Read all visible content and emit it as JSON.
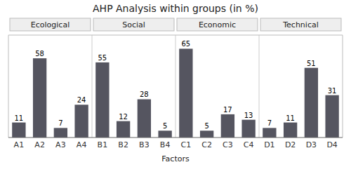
{
  "chart_data": {
    "type": "bar",
    "title": "AHP Analysis within groups (in %)",
    "xlabel": "Factors",
    "categories": [
      "A1",
      "A2",
      "A3",
      "A4",
      "B1",
      "B2",
      "B3",
      "B4",
      "C1",
      "C2",
      "C3",
      "C4",
      "D1",
      "D2",
      "D3",
      "D4"
    ],
    "values": [
      11,
      58,
      7,
      24,
      55,
      12,
      28,
      5,
      65,
      5,
      17,
      13,
      7,
      11,
      51,
      31
    ],
    "color": "#555560",
    "groups": [
      {
        "label": "Ecological",
        "start": 0,
        "end": 3
      },
      {
        "label": "Social",
        "start": 4,
        "end": 7
      },
      {
        "label": "Economic",
        "start": 8,
        "end": 11
      },
      {
        "label": "Technical",
        "start": 12,
        "end": 15
      }
    ],
    "ylim": [
      0,
      75
    ],
    "grid": false,
    "data_labels": true,
    "tick_labels": "x"
  }
}
